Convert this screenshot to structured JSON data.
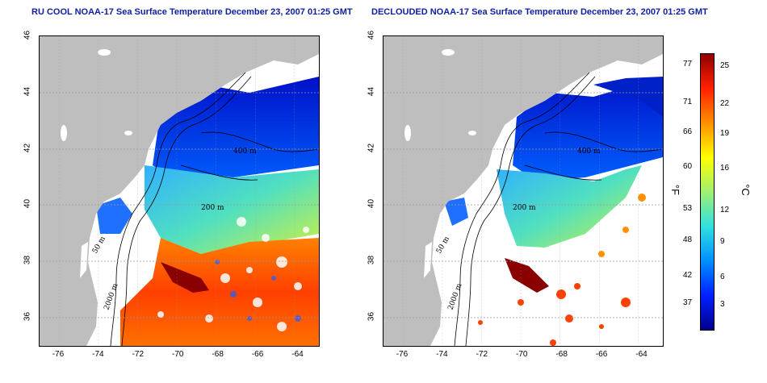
{
  "titles": {
    "left": "RU COOL NOAA-17 Sea Surface Temperature December 23, 2007 01:25 GMT",
    "right": "DECLOUDED NOAA-17 Sea Surface Temperature December 23, 2007 01:25 GMT"
  },
  "axes": {
    "x_ticks": [
      "-76",
      "-74",
      "-72",
      "-70",
      "-68",
      "-66",
      "-64"
    ],
    "y_ticks": [
      "46",
      "44",
      "42",
      "40",
      "38",
      "36"
    ],
    "xlim": [
      -77,
      -63
    ],
    "ylim": [
      35,
      46
    ]
  },
  "contour_labels": [
    "400 m",
    "200 m",
    "50 m",
    "2000 m"
  ],
  "colorbar": {
    "fahrenheit_ticks": [
      "77",
      "71",
      "66",
      "60",
      "53",
      "48",
      "42",
      "37"
    ],
    "celsius_ticks": [
      "25",
      "22",
      "19",
      "16",
      "12",
      "9",
      "6",
      "3"
    ],
    "fahrenheit_unit": "°F",
    "celsius_unit": "°C",
    "range_c": [
      0,
      26
    ]
  },
  "colors": {
    "land": "#bebebe",
    "title": "#1020a0",
    "gradient": [
      "#00008c",
      "#0020ff",
      "#0090ff",
      "#30e0e0",
      "#a0f070",
      "#ffff00",
      "#ff9000",
      "#ff2000",
      "#900000"
    ]
  }
}
